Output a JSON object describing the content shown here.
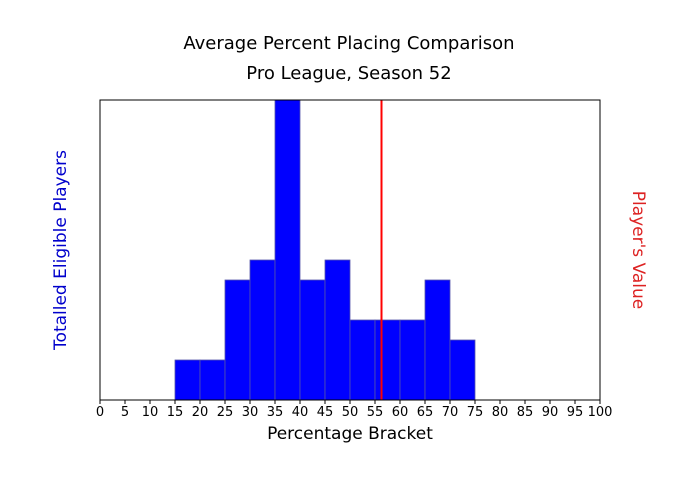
{
  "chart_data": {
    "type": "bar",
    "title": "Average Percent Placing Comparison",
    "subtitle": "Pro League, Season 52",
    "xlabel": "Percentage Bracket",
    "ylabel_left": "Totalled Eligible Players",
    "ylabel_right": "Player's Value",
    "xlim": [
      0,
      100
    ],
    "x_ticks": [
      0,
      5,
      10,
      15,
      20,
      25,
      30,
      35,
      40,
      45,
      50,
      55,
      60,
      65,
      70,
      75,
      80,
      85,
      90,
      95,
      100
    ],
    "bin_width": 5,
    "bins": [
      {
        "start": 15,
        "value": 2
      },
      {
        "start": 20,
        "value": 2
      },
      {
        "start": 25,
        "value": 6
      },
      {
        "start": 30,
        "value": 7
      },
      {
        "start": 35,
        "value": 15
      },
      {
        "start": 40,
        "value": 6
      },
      {
        "start": 45,
        "value": 7
      },
      {
        "start": 50,
        "value": 4
      },
      {
        "start": 55,
        "value": 4
      },
      {
        "start": 60,
        "value": 4
      },
      {
        "start": 65,
        "value": 6
      },
      {
        "start": 70,
        "value": 3
      }
    ],
    "ylim": [
      0,
      15
    ],
    "player_value": 56.3,
    "colors": {
      "bars": "#0000ff",
      "bar_edge": "#5555aa",
      "player_line": "#ff0000",
      "left_label": "#0000cc",
      "right_label": "#dd2222"
    }
  }
}
